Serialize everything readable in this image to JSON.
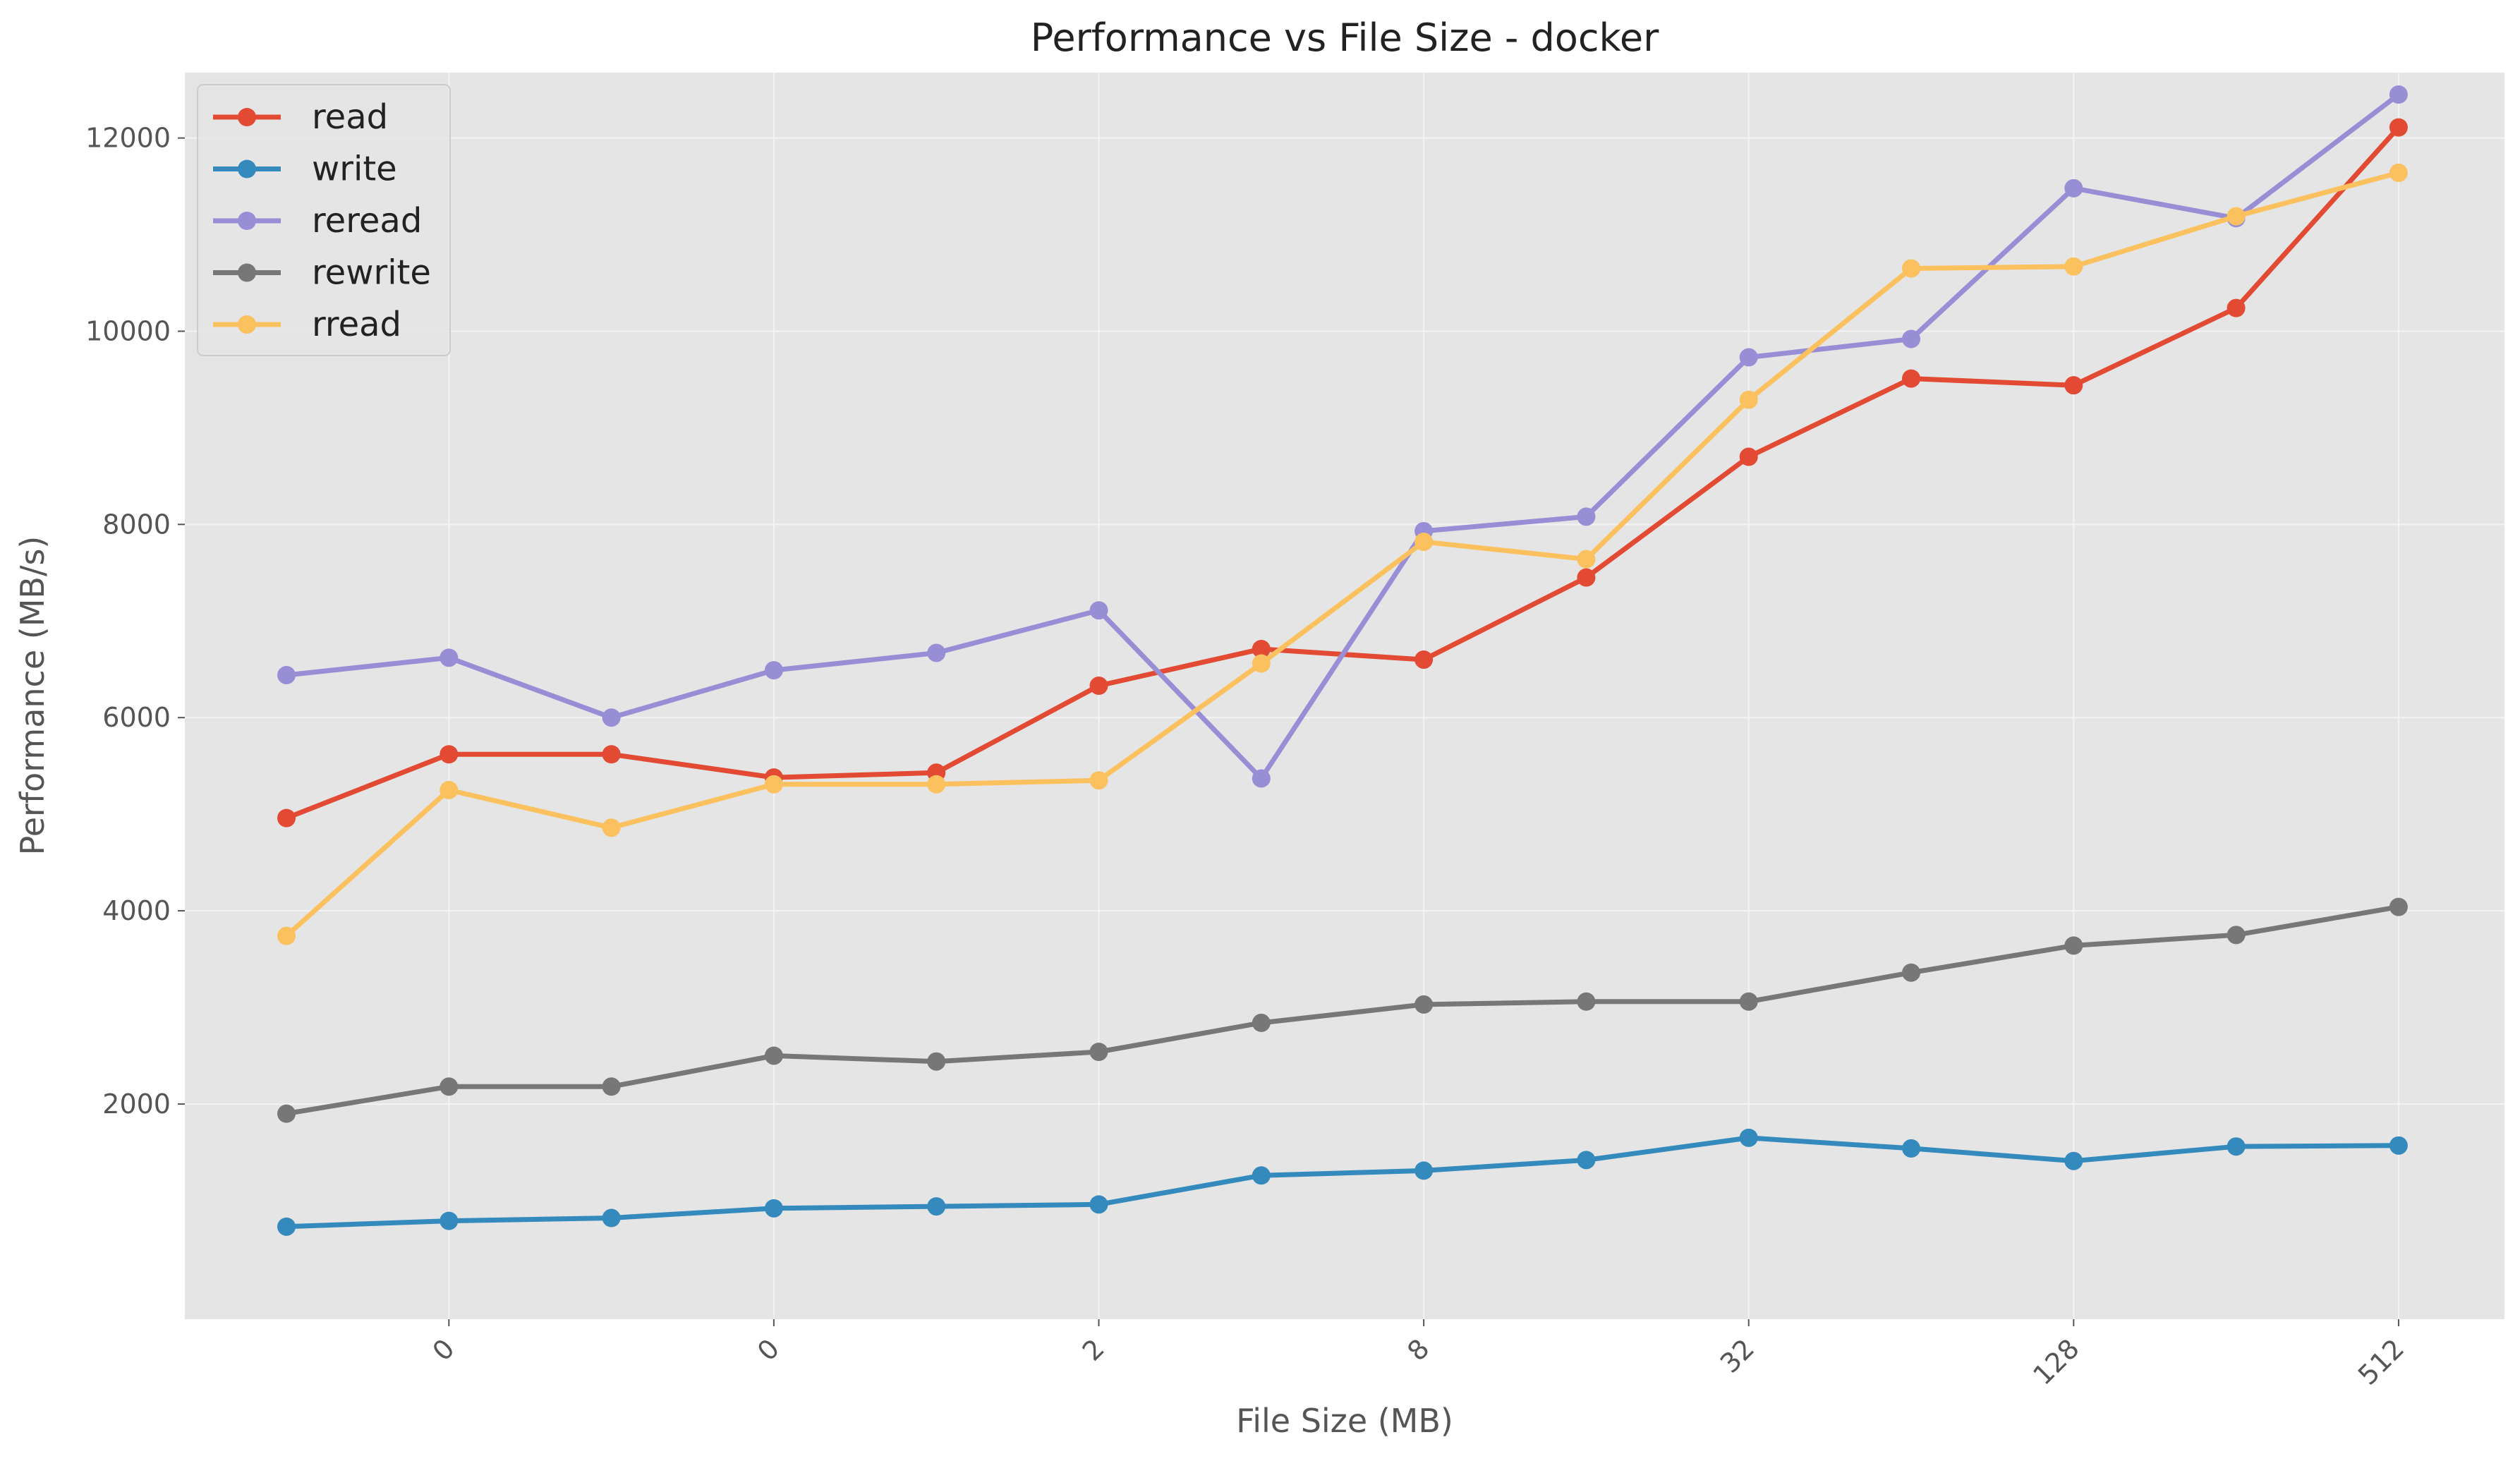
{
  "chart_data": {
    "type": "line",
    "title": "Performance vs File Size - docker",
    "xlabel": "File Size (MB)",
    "ylabel": "Performance (MB/s)",
    "x_tick_labels": [
      "0",
      "0",
      "2",
      "8",
      "32",
      "128",
      "512"
    ],
    "y_ticks": [
      2000,
      4000,
      6000,
      8000,
      10000,
      12000
    ],
    "ylim": [
      100,
      13000
    ],
    "grid": true,
    "legend_position": "top-left",
    "series": [
      {
        "name": "read",
        "color": "#E24A33",
        "values": [
          4960,
          5620,
          5620,
          5380,
          5430,
          6330,
          6710,
          6600,
          7450,
          8700,
          9510,
          9440,
          10240,
          12110
        ]
      },
      {
        "name": "write",
        "color": "#348ABD",
        "values": [
          730,
          790,
          820,
          920,
          940,
          960,
          1260,
          1310,
          1420,
          1650,
          1540,
          1410,
          1560,
          1570
        ]
      },
      {
        "name": "reread",
        "color": "#988ED5",
        "values": [
          6440,
          6620,
          6000,
          6490,
          6670,
          7110,
          5370,
          7930,
          8080,
          9730,
          9920,
          11480,
          11170,
          12450
        ]
      },
      {
        "name": "rewrite",
        "color": "#777777",
        "values": [
          1900,
          2180,
          2180,
          2500,
          2440,
          2540,
          2840,
          3030,
          3060,
          3060,
          3360,
          3640,
          3750,
          4040
        ]
      },
      {
        "name": "rread",
        "color": "#FBC15E",
        "values": [
          3740,
          5250,
          4860,
          5310,
          5310,
          5350,
          6560,
          7820,
          7640,
          9290,
          10650,
          10670,
          11190,
          11640
        ]
      }
    ]
  }
}
